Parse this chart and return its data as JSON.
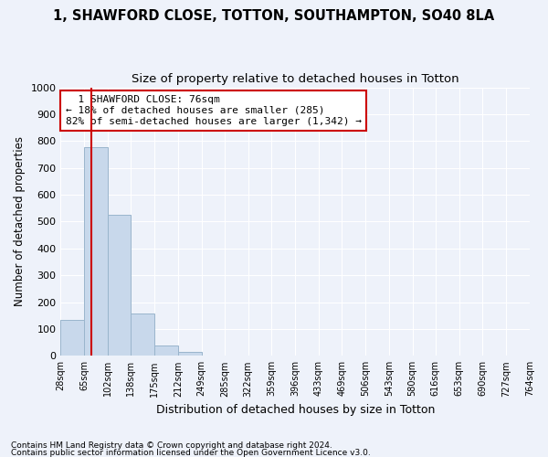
{
  "title1": "1, SHAWFORD CLOSE, TOTTON, SOUTHAMPTON, SO40 8LA",
  "title2": "Size of property relative to detached houses in Totton",
  "xlabel": "Distribution of detached houses by size in Totton",
  "ylabel": "Number of detached properties",
  "footnote1": "Contains HM Land Registry data © Crown copyright and database right 2024.",
  "footnote2": "Contains public sector information licensed under the Open Government Licence v3.0.",
  "bin_edges": [
    28,
    65,
    102,
    138,
    175,
    212,
    249,
    285,
    322,
    359,
    396,
    433,
    469,
    506,
    543,
    580,
    616,
    653,
    690,
    727,
    764
  ],
  "bar_heights": [
    133,
    778,
    524,
    157,
    38,
    15,
    0,
    0,
    0,
    0,
    0,
    0,
    0,
    0,
    0,
    0,
    0,
    0,
    0,
    0
  ],
  "bar_color": "#c8d8eb",
  "bar_edge_color": "#9ab5cc",
  "property_size": 76,
  "vline_color": "#cc0000",
  "ylim": [
    0,
    1000
  ],
  "yticks": [
    0,
    100,
    200,
    300,
    400,
    500,
    600,
    700,
    800,
    900,
    1000
  ],
  "annotation_text": "  1 SHAWFORD CLOSE: 76sqm\n← 18% of detached houses are smaller (285)\n82% of semi-detached houses are larger (1,342) →",
  "annotation_box_color": "#cc0000",
  "background_color": "#eef2fa",
  "grid_color": "#ffffff",
  "title1_fontsize": 10.5,
  "title2_fontsize": 9.5,
  "xlabel_fontsize": 9,
  "ylabel_fontsize": 8.5
}
